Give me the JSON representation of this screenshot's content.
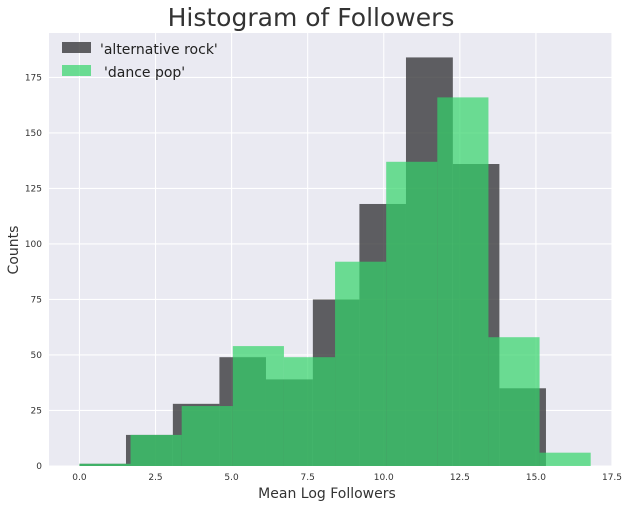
{
  "chart_data": {
    "type": "histogram",
    "title": "Histogram of Followers",
    "xlabel": "Mean Log Followers",
    "ylabel": "Counts",
    "xlim": [
      -1.0,
      17.5
    ],
    "ylim": [
      0,
      195
    ],
    "xticks": [
      "0.0",
      "2.5",
      "5.0",
      "7.5",
      "10.0",
      "12.5",
      "15.0",
      "17.5"
    ],
    "xtick_values": [
      0,
      2.5,
      5,
      7.5,
      10,
      12.5,
      15,
      17.5
    ],
    "yticks": [
      "0",
      "25",
      "50",
      "75",
      "100",
      "125",
      "150",
      "175"
    ],
    "ytick_values": [
      0,
      25,
      50,
      75,
      100,
      125,
      150,
      175
    ],
    "grid": true,
    "background": "#eaeaf2",
    "legend_position": "top-left",
    "series": [
      {
        "name": "'alternative rock'",
        "color": "#3a3a3c",
        "opacity": 0.8,
        "bin_edges": [
          0.0,
          1.53,
          3.07,
          4.6,
          6.13,
          7.67,
          9.2,
          10.73,
          12.27,
          13.8,
          15.33
        ],
        "counts": [
          1,
          14,
          28,
          49,
          39,
          75,
          118,
          184,
          136,
          35
        ]
      },
      {
        "name": "'dance pop'",
        "color": "#33d46a",
        "opacity": 0.7,
        "bin_edges": [
          0.0,
          1.68,
          3.36,
          5.04,
          6.72,
          8.4,
          10.08,
          11.76,
          13.44,
          15.12,
          16.8
        ],
        "counts": [
          1,
          14,
          27,
          54,
          49,
          92,
          137,
          166,
          58,
          6
        ]
      }
    ]
  }
}
